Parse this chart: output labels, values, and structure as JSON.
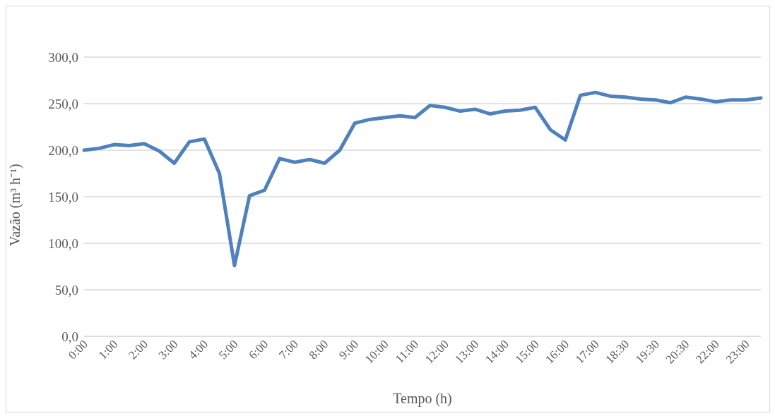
{
  "chart_data": {
    "type": "line",
    "xlabel": "Tempo (h)",
    "ylabel": "Vazão (m³ h⁻¹)",
    "categories": [
      "0:00",
      null,
      "1:00",
      null,
      "2:00",
      null,
      "3:00",
      null,
      "4:00",
      null,
      "5:00",
      null,
      "6:00",
      null,
      "7:00",
      null,
      "8:00",
      null,
      "9:00",
      null,
      "10:00",
      null,
      "11:00",
      null,
      "12:00",
      null,
      "13:00",
      null,
      "14:00",
      null,
      "15:00",
      null,
      "16:00",
      null,
      "17:00",
      null,
      "18:30",
      null,
      "19:30",
      null,
      "20:30",
      null,
      "22:00",
      null,
      "23:00",
      null
    ],
    "series": [
      {
        "color": "#4f81bd",
        "values": [
          200,
          202,
          206,
          205,
          207,
          199,
          186,
          209,
          212,
          175,
          76,
          151,
          157,
          191,
          187,
          190,
          186,
          200,
          229,
          233,
          235,
          237,
          235,
          248,
          246,
          242,
          244,
          239,
          242,
          243,
          246,
          222,
          211,
          259,
          262,
          258,
          257,
          255,
          254,
          251,
          257,
          255,
          252,
          254,
          254,
          256
        ]
      }
    ],
    "ylim": [
      0,
      300
    ],
    "yticks": [
      {
        "value": 0,
        "label": "0,0"
      },
      {
        "value": 50,
        "label": "50,0"
      },
      {
        "value": 100,
        "label": "100,0"
      },
      {
        "value": 150,
        "label": "150,0"
      },
      {
        "value": 200,
        "label": "200,0"
      },
      {
        "value": 250,
        "label": "250,0"
      },
      {
        "value": 300,
        "label": "300,0"
      }
    ],
    "grid": "y",
    "legend": false,
    "marker": "none",
    "line_style": "solid"
  }
}
